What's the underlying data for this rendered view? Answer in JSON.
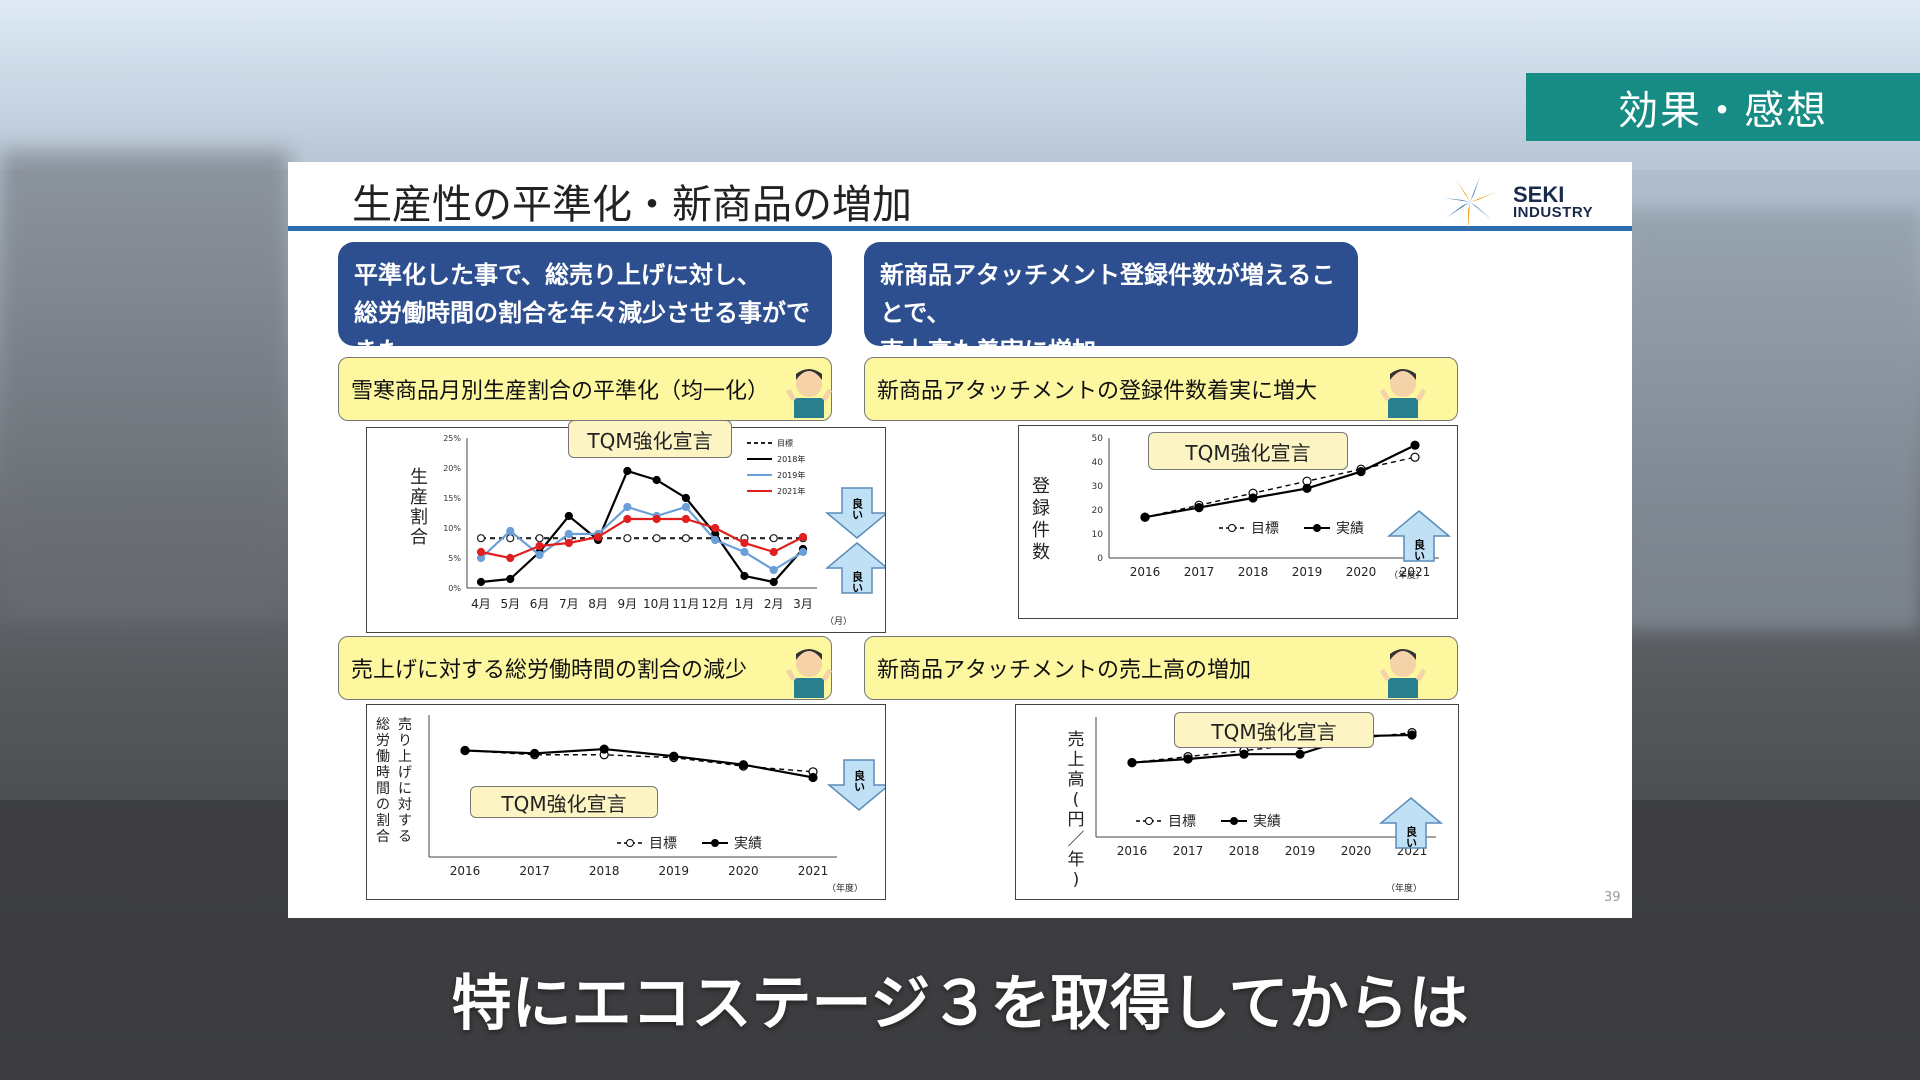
{
  "topic_tag": "効果・感想",
  "slide": {
    "title": "生産性の平準化・新商品の増加",
    "logo": {
      "line1": "SEKI",
      "line2": "INDUSTRY"
    },
    "page_number": "39",
    "left_header": "平準化した事で、総売り上げに対し、\n総労働時間の割合を年々減少させる事ができた",
    "right_header": "新商品アタッチメント登録件数が増えることで、\n売上高も着実に増加",
    "panel1": {
      "label": "雪寒商品月別生産割合の平準化（均一化）",
      "tqm": "TQM強化宣言",
      "ylabel": "生産割合",
      "good_up": "良い",
      "good_down": "良い",
      "chart_data": {
        "type": "line",
        "categories": [
          "4月",
          "5月",
          "6月",
          "7月",
          "8月",
          "9月",
          "10月",
          "11月",
          "12月",
          "1月",
          "2月",
          "3月"
        ],
        "x_unit": "（月）",
        "y_ticks": [
          "0%",
          "5%",
          "10%",
          "15%",
          "20%",
          "25%"
        ],
        "ylim": [
          0,
          25
        ],
        "series": [
          {
            "name": "目標",
            "values": [
              8.3,
              8.3,
              8.3,
              8.3,
              8.3,
              8.3,
              8.3,
              8.3,
              8.3,
              8.3,
              8.3,
              8.3
            ],
            "color": "#222222",
            "dashed": true
          },
          {
            "name": "2018年",
            "values": [
              1,
              1.5,
              6,
              12,
              8,
              19.5,
              18,
              15,
              9,
              2,
              1,
              6.5
            ],
            "color": "#000000"
          },
          {
            "name": "2019年",
            "values": [
              5,
              9.5,
              5.5,
              9,
              9,
              13.5,
              12,
              13.5,
              8,
              6,
              3,
              6
            ],
            "color": "#6a9fd8"
          },
          {
            "name": "2021年",
            "values": [
              6,
              5,
              7,
              7.5,
              8.5,
              11.5,
              11.5,
              11.5,
              10,
              7.5,
              6,
              8.5
            ],
            "color": "#e02020"
          }
        ],
        "legend": "top-right"
      }
    },
    "panel2": {
      "label": "新商品アタッチメントの登録件数着実に増大",
      "tqm": "TQM強化宣言",
      "ylabel": "登録件数",
      "good": "良い",
      "chart_data": {
        "type": "line",
        "categories": [
          "2016",
          "2017",
          "2018",
          "2019",
          "2020",
          "2021"
        ],
        "x_unit": "（年度）",
        "y_ticks": [
          "0",
          "10",
          "20",
          "30",
          "40",
          "50"
        ],
        "ylim": [
          0,
          50
        ],
        "series": [
          {
            "name": "目標",
            "values": [
              17,
              22,
              27,
              32,
              37,
              42
            ],
            "dashed": true,
            "marker": "open"
          },
          {
            "name": "実績",
            "values": [
              17,
              21,
              25,
              29,
              36,
              47
            ],
            "marker": "filled"
          }
        ],
        "legend": "center"
      }
    },
    "panel3": {
      "label": "売上げに対する総労働時間の割合の減少",
      "tqm": "TQM強化宣言",
      "ylabel_col1": "売り上げに対する",
      "ylabel_col2": "総労働時間の割合",
      "good": "良い",
      "chart_data": {
        "type": "line",
        "categories": [
          "2016",
          "2017",
          "2018",
          "2019",
          "2020",
          "2021"
        ],
        "x_unit": "（年度）",
        "ylim": [
          0,
          10
        ],
        "series": [
          {
            "name": "目標",
            "values": [
              7.5,
              7.2,
              7.2,
              7.0,
              6.4,
              6.0
            ],
            "dashed": true,
            "marker": "open"
          },
          {
            "name": "実績",
            "values": [
              7.5,
              7.3,
              7.6,
              7.1,
              6.5,
              5.6
            ],
            "marker": "filled"
          }
        ],
        "legend": "bottom-right"
      }
    },
    "panel4": {
      "label": "新商品アタッチメントの売上高の増加",
      "tqm": "TQM強化宣言",
      "ylabel": "売上高(円／年)",
      "good": "良い",
      "chart_data": {
        "type": "line",
        "categories": [
          "2016",
          "2017",
          "2018",
          "2019",
          "2020",
          "2021"
        ],
        "x_unit": "（年度）",
        "ylim": [
          0,
          10
        ],
        "series": [
          {
            "name": "目標",
            "values": [
              6.2,
              6.7,
              7.2,
              7.7,
              8.2,
              8.7
            ],
            "dashed": true,
            "marker": "open"
          },
          {
            "name": "実績",
            "values": [
              6.2,
              6.5,
              6.9,
              6.9,
              8.4,
              8.5
            ],
            "marker": "filled"
          }
        ],
        "legend": "center"
      }
    }
  },
  "subtitle": "特にエコステージ３を取得してからは"
}
